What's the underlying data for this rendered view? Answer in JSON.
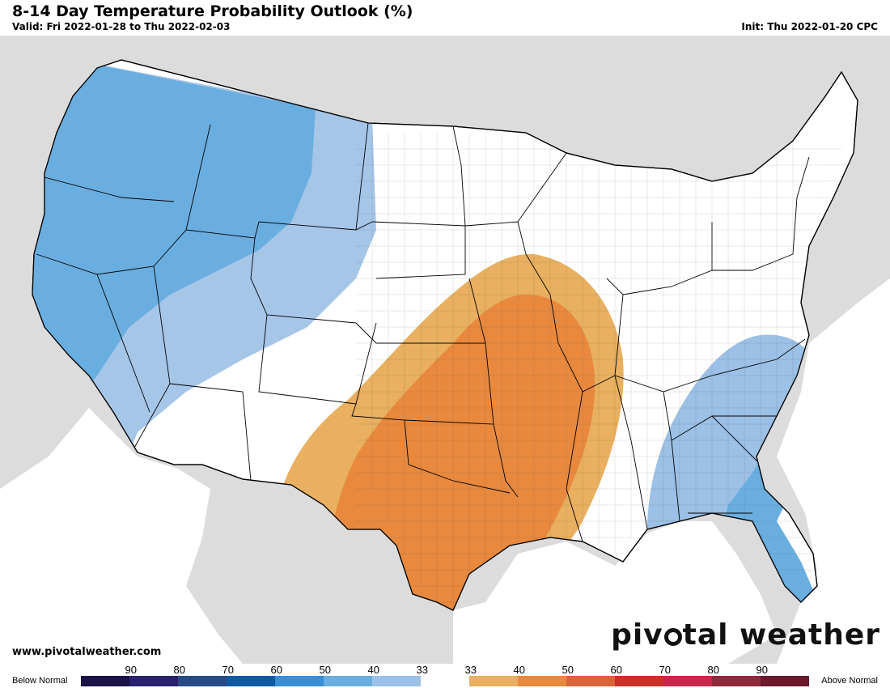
{
  "header": {
    "title": "8-14 Day Temperature Probability Outlook (%)",
    "valid": "Valid: Fri 2022-01-28 to Thu 2022-02-03",
    "init": "Init: Thu 2022-01-20 CPC"
  },
  "footer": {
    "website": "www.pivotalweather.com",
    "brand_pre": "piv",
    "brand_post": "tal weather"
  },
  "legend": {
    "below_label": "Below Normal",
    "above_label": "Above Normal",
    "ticks": [
      "90",
      "80",
      "70",
      "60",
      "50",
      "40",
      "33",
      "33",
      "40",
      "50",
      "60",
      "70",
      "80",
      "90",
      ""
    ],
    "colors": [
      "#1a1446",
      "#2a2070",
      "#2a4a86",
      "#0f5aa3",
      "#3a8ed6",
      "#6aaee0",
      "#9cc0e6",
      "#ffffff",
      "#e8b060",
      "#e8893e",
      "#d8643a",
      "#c83028",
      "#c8284a",
      "#902a3a",
      "#6a1a2a"
    ]
  },
  "map": {
    "land_color": "#ffffff",
    "surround_color": "#dcdcdc",
    "water_color": "#ffffff",
    "regions": [
      {
        "name": "below-33-west",
        "category": "below",
        "probability": "33-40",
        "color": "#9cc0e6"
      },
      {
        "name": "below-40-west",
        "category": "below",
        "probability": "40-50",
        "color": "#6aaee0"
      },
      {
        "name": "above-33-central",
        "category": "above",
        "probability": "33-40",
        "color": "#e8b060"
      },
      {
        "name": "above-40-central",
        "category": "above",
        "probability": "40-50",
        "color": "#e8893e"
      },
      {
        "name": "below-33-southeast",
        "category": "below",
        "probability": "33-40",
        "color": "#9cc0e6"
      },
      {
        "name": "below-40-southeast",
        "category": "below",
        "probability": "40-50",
        "color": "#6aaee0"
      }
    ]
  }
}
